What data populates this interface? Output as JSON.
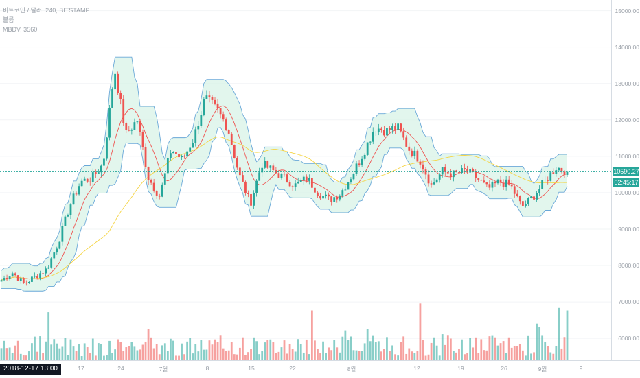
{
  "legend": {
    "symbol_line": "비트코인 / 달러, 240, BITSTAMP",
    "indicator_1": "볼륨",
    "indicator_2": "MBDV, 3560"
  },
  "price_axis": {
    "labels": [
      "15000.00",
      "14000.00",
      "13000.00",
      "12000.00",
      "11000.00",
      "10000.00",
      "9000.00",
      "8000.00",
      "7000.00",
      "6000.00"
    ],
    "current_price": "10590.27",
    "countdown": "02:45:17"
  },
  "time_axis": {
    "cursor_label": "2018-12-17  13:00",
    "labels": [
      "17",
      "24",
      "7월",
      "8",
      "15",
      "22",
      "8월",
      "12",
      "19",
      "26",
      "9월",
      "9"
    ]
  },
  "colors": {
    "up": "#26a69a",
    "down": "#ef5350",
    "band_line": "#6aa8d8",
    "band_fill_up": "#d6f2e6",
    "band_fill_down": "#fbe3e1",
    "fast_ma": "#ef5350",
    "slow_ma": "#f5d442",
    "last_price_line": "#26a69a"
  },
  "chart_data": {
    "type": "candlestick",
    "y_range": [
      5400,
      15200
    ],
    "key_prices": [
      7600,
      7800,
      7500,
      7700,
      7900,
      8600,
      9600,
      10300,
      10400,
      10800,
      13400,
      11600,
      12000,
      10400,
      9900,
      11200,
      10900,
      11500,
      12600,
      12300,
      11800,
      10500,
      9700,
      10800,
      10600,
      10400,
      10200,
      10400,
      10000,
      9800,
      10000,
      10500,
      11100,
      11800,
      11700,
      11800,
      11200,
      10900,
      10200,
      10600,
      10500,
      10600,
      10400,
      10100,
      10300,
      10200,
      9600,
      9900,
      10300,
      10700,
      10590.27
    ],
    "last_price": 10590.27
  }
}
